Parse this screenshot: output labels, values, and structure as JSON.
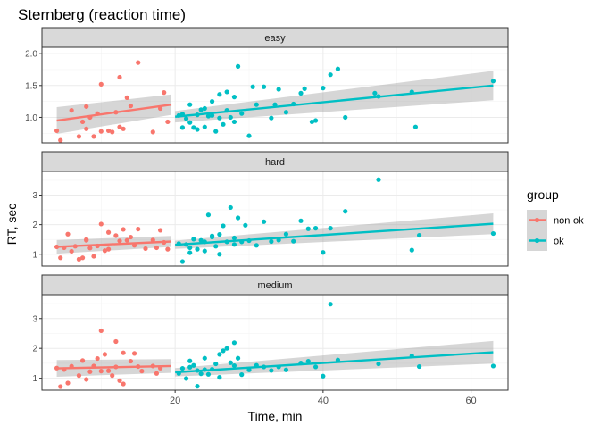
{
  "chart_data": {
    "type": "scatter",
    "title": "Sternberg (reaction time)",
    "xlabel": "Time, min",
    "ylabel": "RT, sec",
    "xlim": [
      2,
      65
    ],
    "x_ticks": [
      20,
      40,
      60
    ],
    "grid": true,
    "legend": {
      "title": "group",
      "position": "right",
      "entries": [
        "non-ok",
        "ok"
      ]
    },
    "colors": {
      "non-ok": "#F8766D",
      "ok": "#00BFC4",
      "ribbon": "#999999",
      "strip": "#D9D9D9"
    },
    "facets": [
      {
        "label": "easy",
        "ylim": [
          0.6,
          2.1
        ],
        "y_ticks": [
          1.0,
          1.5,
          2.0
        ],
        "tick_labels": [
          "1.0",
          "1.5",
          "2.0"
        ],
        "series": [
          {
            "name": "non-ok",
            "x": [
              4,
              4.5,
              6,
              7,
              7.5,
              8,
              8,
              8.5,
              9,
              9.5,
              10,
              10,
              11,
              11.5,
              12,
              12.5,
              12.5,
              13,
              13.5,
              14,
              15,
              17,
              18,
              18.5,
              19
            ],
            "y": [
              0.79,
              0.64,
              1.11,
              0.7,
              0.93,
              1.17,
              0.82,
              1.0,
              0.7,
              1.06,
              1.52,
              0.78,
              0.79,
              0.77,
              1.08,
              1.63,
              0.85,
              0.82,
              1.31,
              1.18,
              1.86,
              0.77,
              1.14,
              1.39,
              0.93
            ],
            "fit": {
              "x": [
                4,
                19.5
              ],
              "y": [
                0.95,
                1.2
              ],
              "ci_low": [
                0.74,
                1.04
              ],
              "ci_high": [
                1.16,
                1.36
              ]
            }
          },
          {
            "name": "ok",
            "x": [
              20.5,
              21,
              21,
              21.5,
              22,
              22,
              22.5,
              23,
              23,
              23.5,
              24,
              24,
              24.5,
              25,
              25,
              25.5,
              26,
              26,
              26.5,
              27,
              27,
              27.5,
              28,
              28,
              28.5,
              29,
              30,
              30.5,
              31,
              32,
              33,
              33.5,
              34,
              35,
              36,
              37,
              37.5,
              38.5,
              39,
              40,
              41,
              42,
              43,
              47,
              47.5,
              52,
              52.5,
              63
            ],
            "y": [
              1.03,
              0.84,
              1.05,
              0.98,
              0.92,
              1.2,
              0.84,
              0.81,
              1.04,
              1.12,
              0.85,
              1.14,
              1.02,
              1.03,
              1.25,
              0.78,
              1.36,
              0.99,
              0.89,
              1.11,
              1.4,
              1.0,
              0.93,
              1.32,
              1.8,
              1.06,
              0.71,
              1.48,
              1.2,
              1.48,
              0.99,
              1.2,
              1.44,
              1.08,
              1.21,
              1.38,
              1.45,
              0.93,
              0.95,
              1.46,
              1.67,
              1.76,
              1.0,
              1.38,
              1.33,
              1.4,
              0.85,
              1.57
            ],
            "fit": {
              "x": [
                20,
                63
              ],
              "y": [
                1.01,
                1.5
              ],
              "ci_low": [
                0.92,
                1.27
              ],
              "ci_high": [
                1.1,
                1.73
              ]
            }
          }
        ]
      },
      {
        "label": "hard",
        "ylim": [
          0.6,
          3.8
        ],
        "y_ticks": [
          1,
          2,
          3
        ],
        "tick_labels": [
          "1",
          "2",
          "3"
        ],
        "series": [
          {
            "name": "non-ok",
            "x": [
              4,
              4.5,
              5,
              5.5,
              6,
              6.5,
              7,
              7.5,
              8,
              8,
              8.5,
              9,
              9.5,
              10,
              10.5,
              11,
              11,
              12,
              12.5,
              13,
              13.5,
              14,
              14.5,
              15,
              16,
              17,
              17.5,
              18,
              18.5,
              19
            ],
            "y": [
              1.25,
              0.88,
              1.22,
              1.68,
              1.1,
              1.27,
              0.83,
              0.88,
              1.5,
              1.47,
              1.21,
              0.93,
              1.28,
              2.02,
              1.12,
              1.74,
              1.17,
              1.63,
              1.45,
              1.84,
              1.47,
              1.58,
              1.3,
              1.85,
              1.19,
              1.48,
              1.22,
              1.81,
              1.4,
              1.17
            ],
            "fit": {
              "x": [
                4,
                19.5
              ],
              "y": [
                1.25,
                1.43
              ],
              "ci_low": [
                1.02,
                1.25
              ],
              "ci_high": [
                1.48,
                1.62
              ]
            }
          },
          {
            "name": "ok",
            "x": [
              20.5,
              21,
              21.5,
              22,
              22,
              22.5,
              23,
              23.5,
              24,
              24,
              24.5,
              25,
              25,
              25.5,
              26,
              26,
              26.5,
              27,
              27.5,
              28,
              28,
              28.5,
              29,
              29.5,
              30,
              31,
              32,
              33,
              34,
              35,
              36,
              37,
              38,
              39,
              40,
              41,
              43,
              47.5,
              52,
              53,
              63
            ],
            "y": [
              1.36,
              0.75,
              1.33,
              1.05,
              1.22,
              1.51,
              1.17,
              1.47,
              1.42,
              1.11,
              2.33,
              1.62,
              1.58,
              1.27,
              1.67,
              1.0,
              1.96,
              1.42,
              2.58,
              1.33,
              1.55,
              2.23,
              1.42,
              1.98,
              1.46,
              1.3,
              2.1,
              1.43,
              1.48,
              1.68,
              1.44,
              2.13,
              1.86,
              1.88,
              1.06,
              1.88,
              2.45,
              3.52,
              1.14,
              1.64,
              1.7
            ],
            "fit": {
              "x": [
                20,
                63
              ],
              "y": [
                1.32,
                2.03
              ],
              "ci_low": [
                1.18,
                1.68
              ],
              "ci_high": [
                1.46,
                2.38
              ]
            }
          }
        ]
      },
      {
        "label": "medium",
        "ylim": [
          0.6,
          3.8
        ],
        "y_ticks": [
          1,
          2,
          3
        ],
        "tick_labels": [
          "1",
          "2",
          "3"
        ],
        "series": [
          {
            "name": "non-ok",
            "x": [
              4,
              4.5,
              5,
              5.5,
              6,
              7,
              7.5,
              8,
              8.5,
              9,
              9.5,
              10,
              10,
              10.5,
              11,
              11.5,
              12,
              12,
              12.5,
              13,
              13,
              14,
              14.5,
              15,
              15.5,
              17,
              17.5,
              18
            ],
            "y": [
              1.34,
              0.72,
              1.29,
              0.84,
              1.4,
              1.09,
              1.59,
              0.96,
              1.22,
              1.41,
              1.66,
              2.59,
              1.24,
              1.8,
              1.25,
              1.09,
              1.38,
              2.23,
              0.92,
              0.81,
              1.85,
              1.57,
              1.83,
              1.39,
              1.24,
              1.41,
              1.16,
              1.34
            ],
            "fit": {
              "x": [
                4,
                19.5
              ],
              "y": [
                1.33,
                1.41
              ],
              "ci_low": [
                1.05,
                1.18
              ],
              "ci_high": [
                1.61,
                1.64
              ]
            }
          },
          {
            "name": "ok",
            "x": [
              20.5,
              21,
              21.5,
              22,
              22,
              22.5,
              23,
              23,
              23.5,
              24,
              24,
              24.5,
              25,
              25.5,
              26,
              26,
              26.5,
              27,
              27.5,
              28,
              28,
              28.5,
              29,
              30,
              31,
              32,
              33,
              34,
              35,
              37,
              38,
              39,
              40,
              41,
              42,
              47.5,
              52,
              53,
              63
            ],
            "y": [
              1.16,
              1.33,
              0.99,
              1.37,
              1.58,
              1.43,
              0.73,
              1.26,
              1.15,
              1.67,
              1.29,
              1.13,
              1.3,
              1.48,
              1.8,
              1.03,
              1.92,
              2.0,
              1.52,
              1.42,
              2.19,
              1.67,
              1.12,
              1.28,
              1.43,
              1.38,
              1.26,
              1.38,
              1.28,
              1.51,
              1.57,
              1.38,
              1.07,
              3.48,
              1.61,
              1.48,
              1.75,
              1.39,
              1.41
            ],
            "fit": {
              "x": [
                20,
                63
              ],
              "y": [
                1.2,
                1.87
              ],
              "ci_low": [
                1.06,
                1.49
              ],
              "ci_high": [
                1.34,
                2.25
              ]
            }
          }
        ]
      }
    ]
  }
}
